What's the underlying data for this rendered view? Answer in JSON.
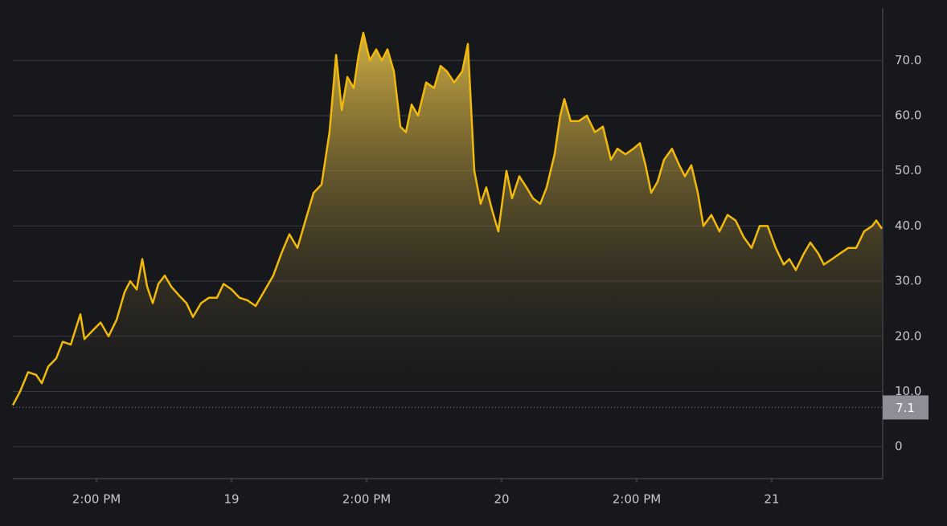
{
  "chart_data": {
    "type": "area",
    "x": [
      4.57,
      5.21,
      5.93,
      6.64,
      7.14,
      7.71,
      8.43,
      9.0,
      9.71,
      10.57,
      10.93,
      11.64,
      12.36,
      13.07,
      13.79,
      14.5,
      15.0,
      15.57,
      16.07,
      16.5,
      17.0,
      17.5,
      18.07,
      18.64,
      19.29,
      20.0,
      20.57,
      21.29,
      22.0,
      22.71,
      23.29,
      24.0,
      24.71,
      25.43,
      26.14,
      26.86,
      27.71,
      28.43,
      29.14,
      29.86,
      30.57,
      31.29,
      32.0,
      32.71,
      33.29,
      33.79,
      34.29,
      34.86,
      35.29,
      35.71,
      36.29,
      36.86,
      37.36,
      37.86,
      38.43,
      39.0,
      39.5,
      40.0,
      40.57,
      41.29,
      42.0,
      42.57,
      43.14,
      43.79,
      44.5,
      45.0,
      45.57,
      46.14,
      46.64,
      47.14,
      47.71,
      48.43,
      48.93,
      49.57,
      50.21,
      50.79,
      51.43,
      52.0,
      52.71,
      53.21,
      53.57,
      54.14,
      54.86,
      55.57,
      56.29,
      57.0,
      57.71,
      58.29,
      59.0,
      59.71,
      60.29,
      60.79,
      61.29,
      61.86,
      62.43,
      63.14,
      63.79,
      64.29,
      64.86,
      65.43,
      65.93,
      66.64,
      67.36,
      68.07,
      68.79,
      69.5,
      70.21,
      70.93,
      71.64,
      72.36,
      73.07,
      73.57,
      74.14,
      74.86,
      75.43,
      76.14,
      76.64,
      77.36,
      78.07,
      78.79,
      79.5,
      80.21,
      80.93,
      81.29,
      81.79
    ],
    "values": [
      7.5,
      10,
      13.5,
      13,
      11.5,
      14.5,
      16,
      19,
      18.5,
      24,
      19.5,
      21,
      22.5,
      20,
      23,
      28,
      30,
      28.5,
      34,
      29,
      26,
      29.5,
      31,
      29,
      27.5,
      26,
      23.5,
      26,
      27,
      27,
      29.5,
      28.5,
      27,
      26.5,
      25.5,
      28,
      31,
      35,
      38.5,
      36,
      41,
      46,
      47.5,
      57,
      71,
      61,
      67,
      65,
      71,
      75,
      70,
      72,
      70,
      72,
      68,
      58,
      57,
      62,
      60,
      66,
      65,
      69,
      68,
      66,
      68,
      73,
      50,
      44,
      47,
      43,
      39,
      50,
      45,
      49,
      47,
      45,
      44,
      47,
      53,
      60,
      63,
      59,
      59,
      60,
      57,
      58,
      52,
      54,
      53,
      54,
      55,
      51,
      46,
      48,
      52,
      54,
      51,
      49,
      51,
      46,
      40,
      42,
      39,
      42,
      41,
      38,
      36,
      40,
      40,
      36,
      33,
      34,
      32,
      35,
      37,
      35,
      33,
      34,
      35,
      36,
      36,
      39,
      40,
      41,
      39.5
    ],
    "color": "#f0b90b",
    "xlim": [
      4.57,
      81.86
    ],
    "xticks": [
      {
        "value": 12,
        "label": "2:00 PM"
      },
      {
        "value": 24,
        "label": "19"
      },
      {
        "value": 36,
        "label": "2:00 PM"
      },
      {
        "value": 48,
        "label": "20"
      },
      {
        "value": 60,
        "label": "2:00 PM"
      },
      {
        "value": 72,
        "label": "21"
      }
    ],
    "ylim": [
      -5.8,
      79.5
    ],
    "yticks": [
      0,
      {
        "value": 10,
        "label": "10.0"
      },
      {
        "value": 20,
        "label": "20.0"
      },
      {
        "value": 30,
        "label": "30.0"
      },
      {
        "value": 40,
        "label": "40.0"
      },
      {
        "value": 50,
        "label": "50.0"
      },
      {
        "value": 60,
        "label": "60.0"
      },
      {
        "value": 70,
        "label": "70.0"
      }
    ],
    "grid": true,
    "price_line": 7.1
  }
}
